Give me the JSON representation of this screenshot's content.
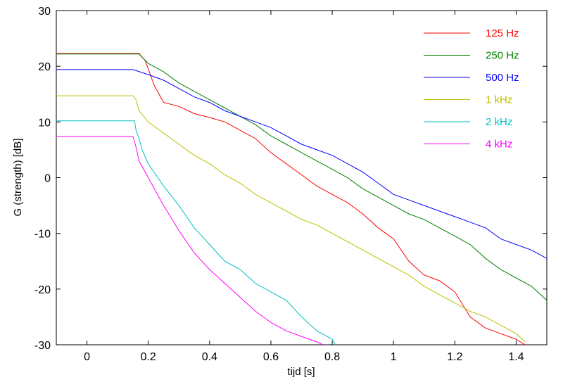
{
  "chart_data": {
    "type": "line",
    "xlabel": "tijd  [s]",
    "ylabel": "G (strength) [dB]",
    "xlim": [
      -0.1,
      1.5
    ],
    "ylim": [
      -30,
      30
    ],
    "x_ticks": [
      {
        "value": 0,
        "label": "0"
      },
      {
        "value": 0.2,
        "label": "0.2"
      },
      {
        "value": 0.4,
        "label": "0.4"
      },
      {
        "value": 0.6,
        "label": "0.6"
      },
      {
        "value": 0.8,
        "label": "0.8"
      },
      {
        "value": 1.0,
        "label": "1"
      },
      {
        "value": 1.2,
        "label": "1.2"
      },
      {
        "value": 1.4,
        "label": "1.4"
      }
    ],
    "y_ticks": [
      {
        "value": 30,
        "label": "30"
      },
      {
        "value": 20,
        "label": "20"
      },
      {
        "value": 10,
        "label": "10"
      },
      {
        "value": 0,
        "label": "0"
      },
      {
        "value": -10,
        "label": "-10"
      },
      {
        "value": -20,
        "label": "-20"
      },
      {
        "value": -30,
        "label": "-30"
      }
    ],
    "grid": false,
    "legend_position": "top-right",
    "series": [
      {
        "name": "125 Hz",
        "color": "#ff0000",
        "x": [
          -0.1,
          0.17,
          0.19,
          0.2,
          0.22,
          0.24,
          0.25,
          0.3,
          0.35,
          0.4,
          0.45,
          0.5,
          0.55,
          0.6,
          0.65,
          0.7,
          0.75,
          0.8,
          0.85,
          0.9,
          0.95,
          1.0,
          1.05,
          1.1,
          1.15,
          1.2,
          1.25,
          1.3,
          1.35,
          1.4,
          1.43
        ],
        "y": [
          22.3,
          22.3,
          21.0,
          19.5,
          16.5,
          14.5,
          13.5,
          12.8,
          11.5,
          10.8,
          10.0,
          8.5,
          7.0,
          4.5,
          2.5,
          0.5,
          -1.5,
          -3.0,
          -4.5,
          -6.5,
          -9.0,
          -11.0,
          -15.0,
          -17.5,
          -18.5,
          -20.5,
          -25.0,
          -27.0,
          -28.0,
          -29.0,
          -30.0
        ]
      },
      {
        "name": "250 Hz",
        "color": "#007f00",
        "x": [
          -0.1,
          0.17,
          0.2,
          0.25,
          0.3,
          0.35,
          0.4,
          0.45,
          0.5,
          0.55,
          0.6,
          0.65,
          0.7,
          0.75,
          0.8,
          0.85,
          0.9,
          0.95,
          1.0,
          1.05,
          1.1,
          1.15,
          1.2,
          1.25,
          1.3,
          1.35,
          1.4,
          1.45,
          1.5
        ],
        "y": [
          22.2,
          22.2,
          20.5,
          19.0,
          17.0,
          15.5,
          14.0,
          12.5,
          11.0,
          9.5,
          7.5,
          6.0,
          4.5,
          3.0,
          1.5,
          0.0,
          -2.0,
          -3.5,
          -5.0,
          -6.5,
          -7.5,
          -9.0,
          -10.5,
          -12.0,
          -14.5,
          -16.5,
          -18.0,
          -19.5,
          -22.0
        ]
      },
      {
        "name": "500 Hz",
        "color": "#0000ff",
        "x": [
          -0.1,
          0.15,
          0.2,
          0.25,
          0.3,
          0.35,
          0.4,
          0.45,
          0.5,
          0.55,
          0.6,
          0.65,
          0.7,
          0.75,
          0.8,
          0.85,
          0.9,
          0.95,
          1.0,
          1.05,
          1.1,
          1.15,
          1.2,
          1.25,
          1.3,
          1.35,
          1.4,
          1.45,
          1.5
        ],
        "y": [
          19.4,
          19.4,
          18.5,
          17.5,
          16.0,
          14.5,
          13.5,
          12.0,
          11.0,
          10.0,
          9.0,
          7.5,
          6.0,
          5.0,
          4.0,
          2.5,
          1.0,
          -1.0,
          -3.0,
          -4.0,
          -5.0,
          -6.0,
          -7.0,
          -8.0,
          -9.0,
          -11.0,
          -12.0,
          -13.0,
          -14.5
        ]
      },
      {
        "name": "1 kHz",
        "color": "#bfbf00",
        "x": [
          -0.1,
          0.15,
          0.16,
          0.17,
          0.2,
          0.25,
          0.3,
          0.35,
          0.4,
          0.45,
          0.5,
          0.55,
          0.6,
          0.65,
          0.7,
          0.75,
          0.8,
          0.85,
          0.9,
          0.95,
          1.0,
          1.05,
          1.1,
          1.15,
          1.2,
          1.25,
          1.3,
          1.35,
          1.4,
          1.43
        ],
        "y": [
          14.7,
          14.7,
          14.0,
          12.0,
          10.0,
          8.0,
          6.0,
          4.0,
          2.5,
          0.5,
          -1.0,
          -3.0,
          -4.5,
          -6.0,
          -7.5,
          -8.5,
          -10.0,
          -11.5,
          -13.0,
          -14.5,
          -16.0,
          -17.5,
          -19.5,
          -21.0,
          -22.5,
          -24.0,
          -25.0,
          -26.5,
          -28.0,
          -29.5
        ]
      },
      {
        "name": "2 kHz",
        "color": "#00bfbf",
        "x": [
          -0.1,
          0.155,
          0.16,
          0.17,
          0.18,
          0.2,
          0.25,
          0.3,
          0.35,
          0.4,
          0.45,
          0.5,
          0.55,
          0.6,
          0.65,
          0.7,
          0.75,
          0.8,
          0.81
        ],
        "y": [
          10.2,
          10.2,
          8.5,
          7.0,
          5.0,
          2.5,
          -1.5,
          -5.0,
          -9.0,
          -12.0,
          -15.0,
          -16.5,
          -19.0,
          -20.5,
          -22.0,
          -25.0,
          -27.5,
          -29.0,
          -30.0
        ]
      },
      {
        "name": "4 kHz",
        "color": "#ff00ff",
        "x": [
          -0.1,
          0.15,
          0.16,
          0.17,
          0.2,
          0.25,
          0.3,
          0.35,
          0.4,
          0.45,
          0.5,
          0.55,
          0.6,
          0.65,
          0.7,
          0.75,
          0.77
        ],
        "y": [
          7.4,
          7.4,
          5.5,
          3.0,
          0.0,
          -5.0,
          -9.5,
          -13.5,
          -16.5,
          -19.0,
          -21.5,
          -24.0,
          -26.0,
          -27.5,
          -28.5,
          -29.5,
          -30.0
        ]
      }
    ]
  }
}
